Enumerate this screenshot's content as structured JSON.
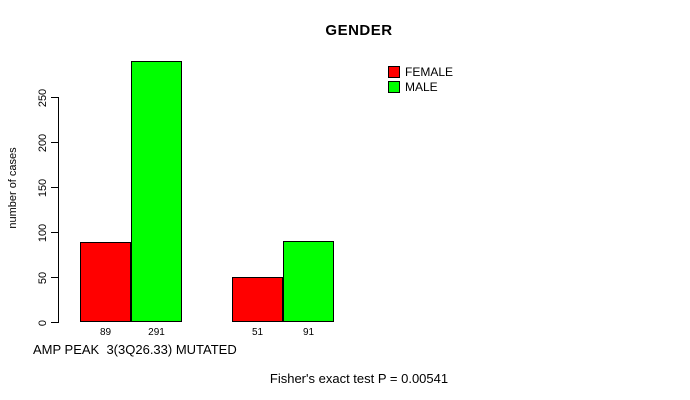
{
  "title": "GENDER",
  "footer_annotation": "Fisher's exact test P = 0.00541",
  "colors": {
    "female": "#FF0000",
    "male": "#00FF00",
    "axis": "#000000",
    "background": "#FFFFFF"
  },
  "legend": {
    "position": "top-right",
    "items": [
      {
        "label": "FEMALE",
        "color": "#FF0000"
      },
      {
        "label": "MALE",
        "color": "#00FF00"
      }
    ]
  },
  "chart_data": {
    "type": "bar",
    "title": "GENDER",
    "xlabel": "AMP PEAK  3(3Q26.33) MUTATED",
    "ylabel": "number of cases",
    "grid": false,
    "legend_position": "top-right",
    "y_ticks": [
      0,
      50,
      100,
      150,
      200,
      250
    ],
    "ylim": [
      0,
      300
    ],
    "groups": 2,
    "series": [
      {
        "name": "FEMALE",
        "color": "#FF0000",
        "values": [
          89,
          51
        ]
      },
      {
        "name": "MALE",
        "color": "#00FF00",
        "values": [
          291,
          91
        ]
      }
    ],
    "bar_value_labels": [
      "89",
      "291",
      "51",
      "91"
    ],
    "annotation": "Fisher's exact test P = 0.00541"
  }
}
